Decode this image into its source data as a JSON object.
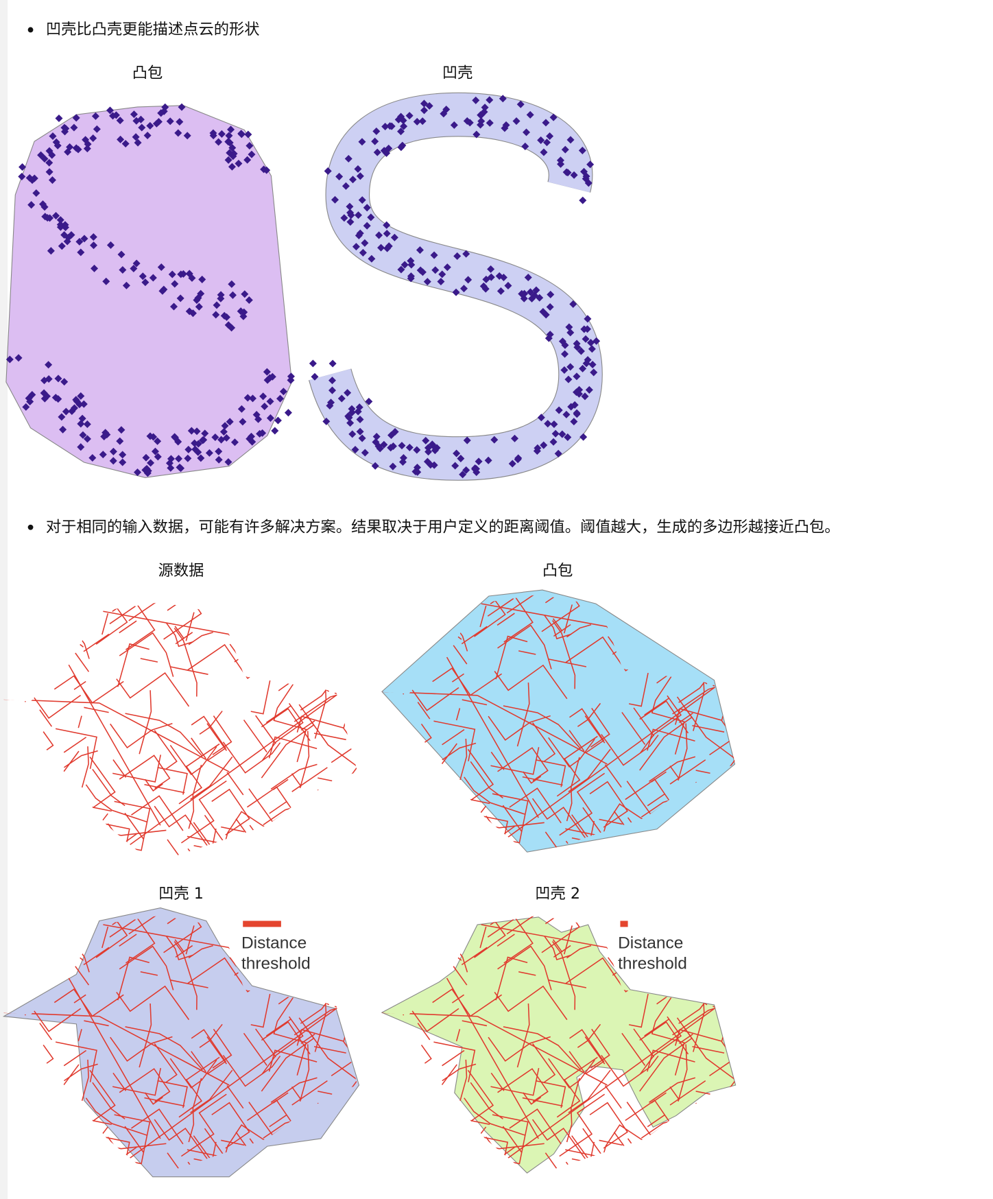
{
  "sections": [
    {
      "bullet": "凹壳比凸壳更能描述点云的形状",
      "figures": [
        {
          "label": "凸包"
        },
        {
          "label": "凹壳"
        }
      ]
    },
    {
      "bullet": "对于相同的输入数据，可能有许多解决方案。结果取决于用户定义的距离阈值。阈值越大，生成的多边形越接近凸包。",
      "figures": [
        {
          "label": "源数据"
        },
        {
          "label": "凸包"
        },
        {
          "label": "凹壳 1",
          "legend": [
            "Distance",
            "threshold"
          ]
        },
        {
          "label": "凹壳 2",
          "legend": [
            "Distance",
            "threshold"
          ]
        }
      ]
    }
  ]
}
